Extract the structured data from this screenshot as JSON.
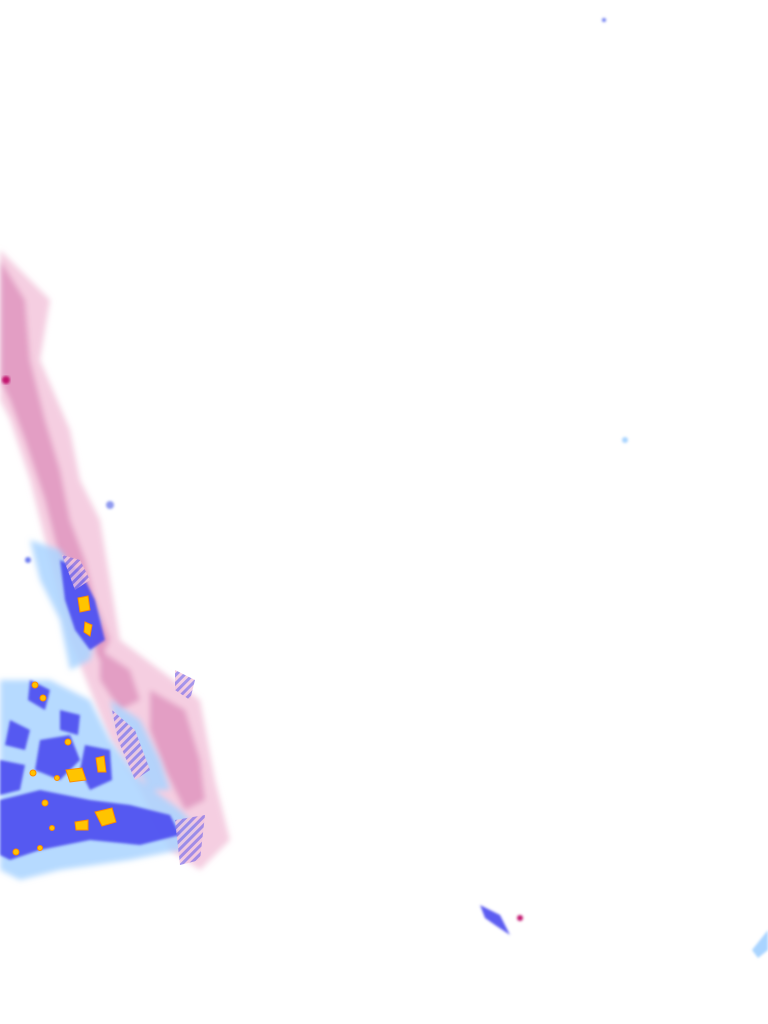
{
  "map": {
    "type": "weather-radar-tile",
    "colors": {
      "snow_light": "#f3c6dc",
      "snow_moderate": "#d77fb0",
      "snow_heavy": "#c2186f",
      "rain_light": "#a9d4ff",
      "rain_moderate": "#4b4bf0",
      "rain_heavy": "#2b22d8",
      "rain_intense": "#ffc400",
      "rain_intense_edge": "#ff8c00",
      "mixed_hatch": "#9a6ad8"
    }
  }
}
